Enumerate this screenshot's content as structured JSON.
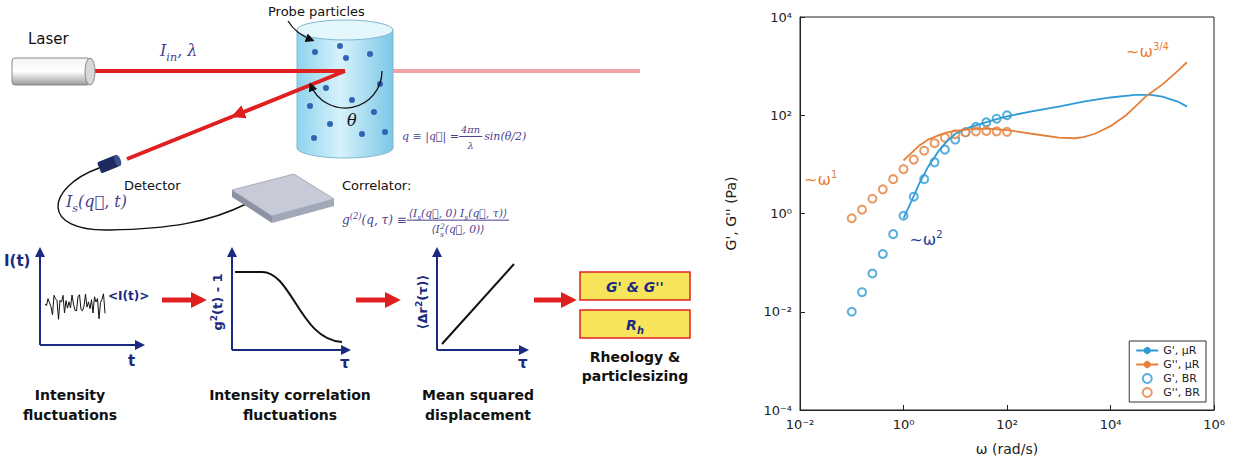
{
  "diagram": {
    "setup": {
      "probe_label": "Probe particles",
      "laser_label": "Laser",
      "beam_label": [
        "I",
        {
          "sub": "in"
        },
        ",  λ"
      ],
      "angle_label": "θ",
      "q_definition": [
        "q ≡ |q⃗| = ",
        {
          "num": [
            "4πn"
          ],
          "den": [
            "λ"
          ]
        },
        " sin(θ/2)"
      ],
      "detector_label": "Detector",
      "signal_label": [
        "I",
        {
          "sub": "s"
        },
        "(q⃗, t)"
      ],
      "correlator_label": "Correlator:",
      "correlator_formula": [
        "g",
        {
          "sup": "(2)"
        },
        "(q, τ) ≡ ",
        {
          "num": [
            "⟨I",
            {
              "sub": "s"
            },
            "(q⃗, 0) I",
            {
              "sub": "s"
            },
            "(q⃗, τ)⟩"
          ],
          "den": [
            "⟨I",
            {
              "sub": "s"
            },
            {
              "sup": "2"
            },
            "(q⃗, 0)⟩"
          ]
        }
      ]
    },
    "pipeline": [
      {
        "y_label": "I(t)",
        "mean_label": "<I(t)>",
        "x_label": "t",
        "caption": "Intensity fluctuations"
      },
      {
        "y_label": [
          "g",
          {
            "sup": "2"
          },
          "(t) - 1"
        ],
        "x_label": "τ",
        "caption": "Intensity correlation fluctuations"
      },
      {
        "y_label": [
          "⟨Δr",
          {
            "sup": "2"
          },
          "(τ)⟩"
        ],
        "x_label": "τ",
        "caption": "Mean squared displacement"
      },
      {
        "boxes": [
          "G' & G''",
          [
            "R",
            {
              "sub": "h"
            }
          ]
        ],
        "caption": "Rheology & particlesizing"
      }
    ]
  },
  "chart_data": {
    "type": "line",
    "xlabel": "ω (rad/s)",
    "ylabel": "G', G'' (Pa)",
    "log": true,
    "grid": false,
    "legend": "lower right",
    "xlim": [
      0.01,
      1000000
    ],
    "ylim": [
      0.0001,
      10000
    ],
    "xticks": [
      {
        "value": 0.01,
        "label": "10⁻²"
      },
      {
        "value": 1,
        "label": "10⁰"
      },
      {
        "value": 100,
        "label": "10²"
      },
      {
        "value": 10000,
        "label": "10⁴"
      },
      {
        "value": 1000000,
        "label": "10⁶"
      }
    ],
    "yticks": [
      {
        "value": 0.0001,
        "label": "10⁻⁴"
      },
      {
        "value": 0.01,
        "label": "10⁻²"
      },
      {
        "value": 1,
        "label": "10⁰"
      },
      {
        "value": 100,
        "label": "10²"
      },
      {
        "value": 10000,
        "label": "10⁴"
      }
    ],
    "series": [
      {
        "name": "G', μR",
        "type": "line",
        "line_style": "solid",
        "color": "#2e9bd6",
        "x": [
          1,
          1.5,
          2,
          3,
          5,
          7,
          10,
          20,
          30,
          50,
          100,
          300,
          1000,
          3000,
          10000,
          30000,
          60000,
          100000,
          200000,
          300000
        ],
        "values": [
          0.8,
          2,
          4,
          9,
          20,
          30,
          42,
          58,
          66,
          78,
          95,
          120,
          150,
          190,
          230,
          260,
          260,
          240,
          190,
          150
        ]
      },
      {
        "name": "G'', μR",
        "type": "line",
        "line_style": "solid",
        "color": "#e4803a",
        "x": [
          1,
          1.5,
          2,
          3,
          5,
          7,
          10,
          20,
          30,
          50,
          100,
          300,
          1000,
          2000,
          3000,
          5000,
          10000,
          20000,
          30000,
          50000,
          100000,
          200000,
          300000
        ],
        "values": [
          12,
          18,
          24,
          32,
          40,
          45,
          48,
          52,
          53,
          53,
          50,
          42,
          35,
          34,
          36,
          42,
          60,
          100,
          150,
          250,
          420,
          800,
          1200
        ]
      },
      {
        "name": "G', BR",
        "type": "scatter",
        "marker": "open_circle",
        "color": "#2e9bd6",
        "x": [
          0.1,
          0.158,
          0.251,
          0.398,
          0.631,
          1,
          1.58,
          2.51,
          3.98,
          6.31,
          10,
          15.8,
          25.1,
          39.8,
          63.1,
          100
        ],
        "values": [
          0.01,
          0.025,
          0.06,
          0.15,
          0.38,
          0.9,
          2.2,
          5,
          11,
          20,
          32,
          45,
          58,
          72,
          85,
          100
        ]
      },
      {
        "name": "G'', BR",
        "type": "scatter",
        "marker": "open_circle",
        "color": "#e4803a",
        "x": [
          0.1,
          0.158,
          0.251,
          0.398,
          0.631,
          1,
          1.58,
          2.51,
          3.98,
          6.31,
          10,
          15.8,
          25.1,
          39.8,
          63.1,
          100
        ],
        "values": [
          0.8,
          1.2,
          2,
          3.1,
          5,
          8,
          12.5,
          19,
          27,
          35,
          41,
          45,
          47,
          48,
          47,
          46
        ]
      }
    ],
    "annotations": [
      {
        "text": "~ω",
        "exponent": "1",
        "x": 0.012,
        "y": 5,
        "color": "#e4803a"
      },
      {
        "text": "~ω",
        "exponent": "2",
        "x": 1.3,
        "y": 0.3,
        "color": "#1f3a93"
      },
      {
        "text": "~ω",
        "exponent": "3/4",
        "x": 20000,
        "y": 2000,
        "color": "#e4803a"
      }
    ]
  }
}
